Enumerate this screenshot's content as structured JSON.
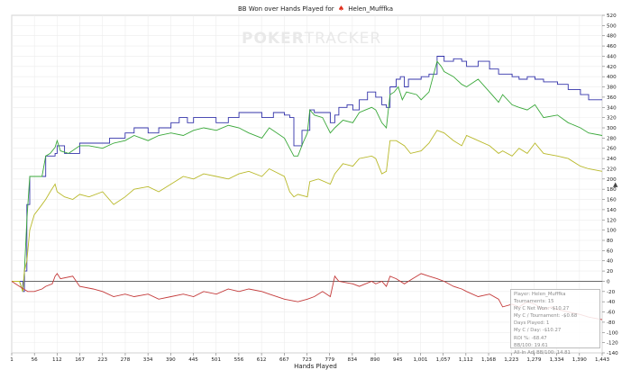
{
  "chart_data": {
    "type": "line",
    "title_prefix": "BB Won over Hands Played for",
    "player": "Helen_Mufffka",
    "xlabel": "Hands Played",
    "xlim": [
      1,
      1443
    ],
    "ylim": [
      -140,
      520
    ],
    "x_ticks": [
      "1",
      "56",
      "112",
      "167",
      "223",
      "278",
      "334",
      "390",
      "445",
      "501",
      "556",
      "612",
      "667",
      "723",
      "779",
      "834",
      "890",
      "945",
      "1,001",
      "1,057",
      "1,112",
      "1,168",
      "1,223",
      "1,279",
      "1,334",
      "1,390",
      "1,443"
    ],
    "y_ticks": [
      -140,
      -120,
      -100,
      -80,
      -60,
      -40,
      -20,
      0,
      20,
      40,
      60,
      80,
      100,
      120,
      140,
      160,
      180,
      200,
      220,
      240,
      260,
      280,
      300,
      320,
      340,
      360,
      380,
      400,
      420,
      440,
      460,
      480,
      500,
      520
    ],
    "series": [
      {
        "color": "#3333aa",
        "step": true,
        "points": [
          [
            1,
            0
          ],
          [
            20,
            0
          ],
          [
            28,
            -20
          ],
          [
            32,
            20
          ],
          [
            38,
            150
          ],
          [
            45,
            205
          ],
          [
            56,
            205
          ],
          [
            75,
            205
          ],
          [
            84,
            245
          ],
          [
            100,
            245
          ],
          [
            107,
            250
          ],
          [
            112,
            265
          ],
          [
            130,
            250
          ],
          [
            150,
            250
          ],
          [
            167,
            270
          ],
          [
            223,
            270
          ],
          [
            240,
            280
          ],
          [
            278,
            290
          ],
          [
            300,
            300
          ],
          [
            334,
            290
          ],
          [
            360,
            300
          ],
          [
            390,
            310
          ],
          [
            410,
            320
          ],
          [
            430,
            310
          ],
          [
            445,
            320
          ],
          [
            470,
            320
          ],
          [
            500,
            310
          ],
          [
            530,
            320
          ],
          [
            556,
            330
          ],
          [
            590,
            330
          ],
          [
            612,
            320
          ],
          [
            640,
            330
          ],
          [
            667,
            325
          ],
          [
            680,
            320
          ],
          [
            690,
            265
          ],
          [
            700,
            265
          ],
          [
            710,
            295
          ],
          [
            723,
            295
          ],
          [
            729,
            335
          ],
          [
            740,
            330
          ],
          [
            760,
            330
          ],
          [
            779,
            310
          ],
          [
            790,
            325
          ],
          [
            800,
            340
          ],
          [
            820,
            345
          ],
          [
            834,
            335
          ],
          [
            850,
            355
          ],
          [
            860,
            355
          ],
          [
            870,
            370
          ],
          [
            880,
            370
          ],
          [
            890,
            360
          ],
          [
            905,
            345
          ],
          [
            916,
            340
          ],
          [
            925,
            380
          ],
          [
            930,
            380
          ],
          [
            940,
            395
          ],
          [
            950,
            400
          ],
          [
            960,
            380
          ],
          [
            970,
            395
          ],
          [
            990,
            395
          ],
          [
            1001,
            400
          ],
          [
            1020,
            405
          ],
          [
            1040,
            440
          ],
          [
            1057,
            430
          ],
          [
            1080,
            435
          ],
          [
            1100,
            430
          ],
          [
            1112,
            420
          ],
          [
            1140,
            430
          ],
          [
            1168,
            415
          ],
          [
            1190,
            405
          ],
          [
            1223,
            400
          ],
          [
            1240,
            395
          ],
          [
            1260,
            400
          ],
          [
            1279,
            395
          ],
          [
            1300,
            390
          ],
          [
            1334,
            385
          ],
          [
            1360,
            375
          ],
          [
            1390,
            365
          ],
          [
            1410,
            355
          ],
          [
            1443,
            355
          ]
        ]
      },
      {
        "color": "#3aa83a",
        "step": false,
        "points": [
          [
            1,
            0
          ],
          [
            20,
            0
          ],
          [
            28,
            -20
          ],
          [
            32,
            20
          ],
          [
            38,
            120
          ],
          [
            45,
            205
          ],
          [
            56,
            205
          ],
          [
            75,
            205
          ],
          [
            84,
            245
          ],
          [
            95,
            250
          ],
          [
            107,
            262
          ],
          [
            112,
            275
          ],
          [
            120,
            255
          ],
          [
            140,
            250
          ],
          [
            167,
            265
          ],
          [
            190,
            265
          ],
          [
            223,
            260
          ],
          [
            250,
            270
          ],
          [
            278,
            275
          ],
          [
            300,
            285
          ],
          [
            334,
            275
          ],
          [
            360,
            285
          ],
          [
            390,
            290
          ],
          [
            420,
            285
          ],
          [
            445,
            295
          ],
          [
            470,
            300
          ],
          [
            501,
            295
          ],
          [
            530,
            305
          ],
          [
            556,
            300
          ],
          [
            580,
            290
          ],
          [
            612,
            280
          ],
          [
            630,
            300
          ],
          [
            667,
            280
          ],
          [
            680,
            260
          ],
          [
            690,
            245
          ],
          [
            700,
            245
          ],
          [
            712,
            270
          ],
          [
            723,
            290
          ],
          [
            729,
            335
          ],
          [
            740,
            325
          ],
          [
            760,
            320
          ],
          [
            779,
            290
          ],
          [
            790,
            300
          ],
          [
            810,
            315
          ],
          [
            834,
            310
          ],
          [
            850,
            330
          ],
          [
            865,
            335
          ],
          [
            880,
            340
          ],
          [
            890,
            335
          ],
          [
            905,
            310
          ],
          [
            916,
            300
          ],
          [
            925,
            365
          ],
          [
            935,
            370
          ],
          [
            945,
            380
          ],
          [
            955,
            355
          ],
          [
            965,
            370
          ],
          [
            990,
            365
          ],
          [
            1001,
            355
          ],
          [
            1020,
            370
          ],
          [
            1040,
            430
          ],
          [
            1050,
            420
          ],
          [
            1057,
            410
          ],
          [
            1080,
            400
          ],
          [
            1100,
            385
          ],
          [
            1112,
            380
          ],
          [
            1140,
            395
          ],
          [
            1168,
            370
          ],
          [
            1190,
            350
          ],
          [
            1200,
            365
          ],
          [
            1223,
            345
          ],
          [
            1240,
            340
          ],
          [
            1260,
            335
          ],
          [
            1279,
            345
          ],
          [
            1300,
            320
          ],
          [
            1334,
            325
          ],
          [
            1360,
            310
          ],
          [
            1390,
            300
          ],
          [
            1410,
            290
          ],
          [
            1443,
            285
          ]
        ]
      },
      {
        "color": "#b9b92a",
        "step": false,
        "points": [
          [
            1,
            0
          ],
          [
            20,
            0
          ],
          [
            28,
            -20
          ],
          [
            32,
            20
          ],
          [
            38,
            40
          ],
          [
            45,
            100
          ],
          [
            56,
            130
          ],
          [
            75,
            150
          ],
          [
            84,
            160
          ],
          [
            95,
            175
          ],
          [
            107,
            190
          ],
          [
            112,
            175
          ],
          [
            130,
            165
          ],
          [
            150,
            160
          ],
          [
            167,
            170
          ],
          [
            190,
            165
          ],
          [
            223,
            175
          ],
          [
            250,
            150
          ],
          [
            278,
            165
          ],
          [
            300,
            180
          ],
          [
            334,
            185
          ],
          [
            360,
            175
          ],
          [
            390,
            190
          ],
          [
            420,
            205
          ],
          [
            445,
            200
          ],
          [
            470,
            210
          ],
          [
            501,
            205
          ],
          [
            530,
            200
          ],
          [
            556,
            210
          ],
          [
            580,
            215
          ],
          [
            612,
            205
          ],
          [
            630,
            220
          ],
          [
            667,
            205
          ],
          [
            680,
            175
          ],
          [
            690,
            165
          ],
          [
            700,
            170
          ],
          [
            723,
            165
          ],
          [
            729,
            195
          ],
          [
            750,
            200
          ],
          [
            779,
            190
          ],
          [
            790,
            210
          ],
          [
            810,
            230
          ],
          [
            834,
            225
          ],
          [
            850,
            240
          ],
          [
            880,
            245
          ],
          [
            890,
            240
          ],
          [
            905,
            210
          ],
          [
            916,
            215
          ],
          [
            925,
            275
          ],
          [
            940,
            275
          ],
          [
            960,
            265
          ],
          [
            975,
            250
          ],
          [
            1001,
            255
          ],
          [
            1020,
            270
          ],
          [
            1040,
            295
          ],
          [
            1057,
            290
          ],
          [
            1080,
            275
          ],
          [
            1100,
            265
          ],
          [
            1112,
            285
          ],
          [
            1140,
            275
          ],
          [
            1168,
            265
          ],
          [
            1190,
            250
          ],
          [
            1200,
            255
          ],
          [
            1223,
            245
          ],
          [
            1240,
            260
          ],
          [
            1260,
            250
          ],
          [
            1279,
            270
          ],
          [
            1300,
            250
          ],
          [
            1334,
            245
          ],
          [
            1360,
            240
          ],
          [
            1390,
            225
          ],
          [
            1410,
            220
          ],
          [
            1443,
            215
          ]
        ]
      },
      {
        "color": "#c43a3a",
        "step": false,
        "points": [
          [
            1,
            0
          ],
          [
            20,
            -10
          ],
          [
            40,
            -20
          ],
          [
            56,
            -20
          ],
          [
            75,
            -15
          ],
          [
            84,
            -10
          ],
          [
            100,
            -5
          ],
          [
            107,
            10
          ],
          [
            112,
            15
          ],
          [
            120,
            5
          ],
          [
            150,
            10
          ],
          [
            167,
            -10
          ],
          [
            200,
            -15
          ],
          [
            223,
            -20
          ],
          [
            250,
            -30
          ],
          [
            278,
            -25
          ],
          [
            300,
            -30
          ],
          [
            334,
            -25
          ],
          [
            360,
            -35
          ],
          [
            390,
            -30
          ],
          [
            420,
            -25
          ],
          [
            445,
            -30
          ],
          [
            470,
            -20
          ],
          [
            501,
            -25
          ],
          [
            530,
            -15
          ],
          [
            556,
            -20
          ],
          [
            580,
            -15
          ],
          [
            612,
            -20
          ],
          [
            630,
            -25
          ],
          [
            667,
            -35
          ],
          [
            700,
            -40
          ],
          [
            723,
            -35
          ],
          [
            740,
            -30
          ],
          [
            760,
            -20
          ],
          [
            779,
            -30
          ],
          [
            790,
            10
          ],
          [
            800,
            0
          ],
          [
            834,
            -5
          ],
          [
            850,
            -10
          ],
          [
            880,
            0
          ],
          [
            890,
            -5
          ],
          [
            905,
            0
          ],
          [
            916,
            -10
          ],
          [
            925,
            10
          ],
          [
            940,
            5
          ],
          [
            960,
            -5
          ],
          [
            980,
            5
          ],
          [
            1001,
            15
          ],
          [
            1020,
            10
          ],
          [
            1040,
            5
          ],
          [
            1057,
            0
          ],
          [
            1080,
            -10
          ],
          [
            1100,
            -15
          ],
          [
            1112,
            -20
          ],
          [
            1140,
            -30
          ],
          [
            1168,
            -25
          ],
          [
            1190,
            -35
          ],
          [
            1200,
            -50
          ],
          [
            1223,
            -45
          ],
          [
            1240,
            -50
          ],
          [
            1260,
            -40
          ],
          [
            1279,
            -45
          ],
          [
            1300,
            -55
          ],
          [
            1320,
            -50
          ],
          [
            1334,
            -55
          ],
          [
            1360,
            -60
          ],
          [
            1390,
            -65
          ],
          [
            1410,
            -70
          ],
          [
            1443,
            -75
          ]
        ]
      }
    ]
  },
  "watermark": {
    "bold": "POKER",
    "light": "TRACKER"
  },
  "stats": [
    "Player: Helen_Mufffka",
    "Tournaments: 15",
    "My C Net Won: -$10.27",
    "My C / Tournament: -$0.68",
    "Days Played: 1",
    "My C / Day: -$10.27",
    "ROI %: -68.47",
    "BB/100: 19.61",
    "All-In Adj BB/100: 14.81"
  ]
}
